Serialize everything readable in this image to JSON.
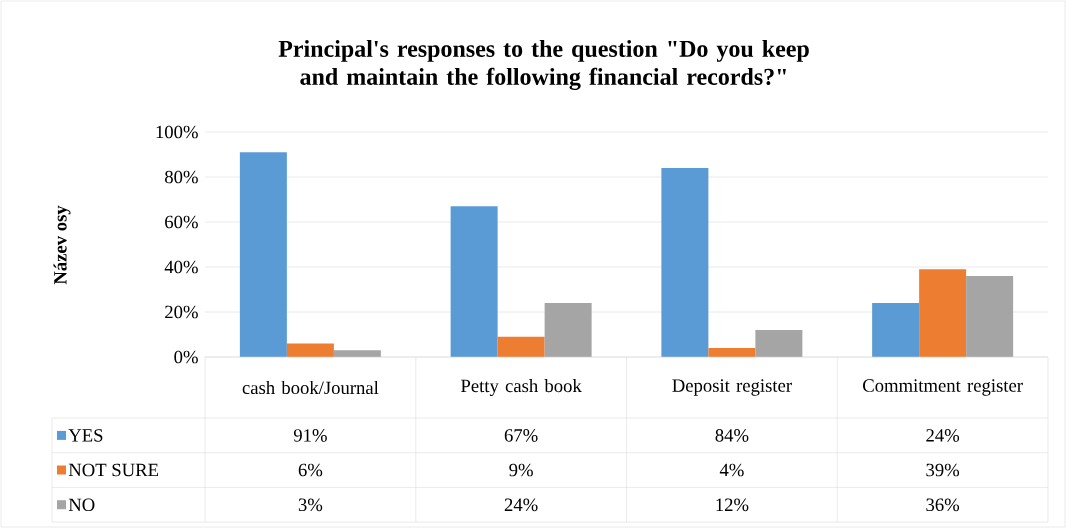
{
  "chart_data": {
    "type": "bar",
    "title": "Principal's responses to the question \"Do you keep and maintain the following financial records?\"",
    "ylabel": "Název osy",
    "categories": [
      "cash book/Journal",
      "Petty cash book",
      "Deposit register",
      "Commitment register"
    ],
    "series": [
      {
        "name": "YES",
        "color": "#5b9bd5",
        "values": [
          91,
          67,
          84,
          24
        ],
        "value_labels": [
          "91%",
          "67%",
          "84%",
          "24%"
        ]
      },
      {
        "name": "NOT SURE",
        "color": "#ed7d31",
        "values": [
          6,
          9,
          4,
          39
        ],
        "value_labels": [
          "6%",
          "9%",
          "4%",
          "39%"
        ]
      },
      {
        "name": "NO",
        "color": "#a5a5a5",
        "values": [
          3,
          24,
          12,
          36
        ],
        "value_labels": [
          "3%",
          "24%",
          "12%",
          "36%"
        ]
      }
    ],
    "ylim": [
      0,
      100
    ],
    "yticks": [
      {
        "value": 0,
        "label": "0%"
      },
      {
        "value": 20,
        "label": "20%"
      },
      {
        "value": 40,
        "label": "40%"
      },
      {
        "value": 60,
        "label": "60%"
      },
      {
        "value": 80,
        "label": "80%"
      },
      {
        "value": 100,
        "label": "100%"
      }
    ],
    "grid": "y",
    "legend": "bottom"
  }
}
